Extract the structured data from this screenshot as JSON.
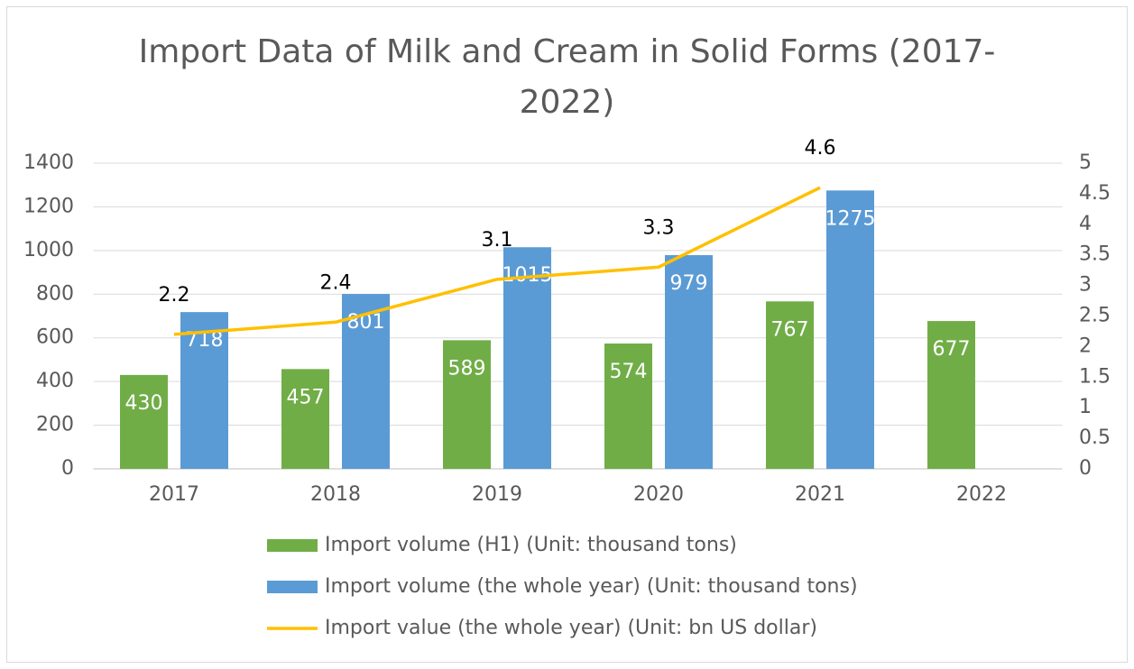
{
  "chart_data": {
    "type": "bar_line",
    "title": "Import Data of Milk and Cream in Solid Forms (2017-2022)",
    "categories": [
      "2017",
      "2018",
      "2019",
      "2020",
      "2021",
      "2022"
    ],
    "series": [
      {
        "name": "Import volume (H1) (Unit: thousand tons)",
        "type": "bar",
        "color": "#70ad47",
        "values": [
          430,
          457,
          589,
          574,
          767,
          677
        ]
      },
      {
        "name": "Import volume (the whole year) (Unit: thousand tons)",
        "type": "bar",
        "color": "#5b9bd5",
        "values": [
          718,
          801,
          1015,
          979,
          1275,
          null
        ]
      },
      {
        "name": "Import value (the whole year) (Unit: bn US dollar)",
        "type": "line",
        "axis": "y2",
        "color": "#ffc000",
        "values": [
          2.2,
          2.4,
          3.1,
          3.3,
          4.6,
          null
        ]
      }
    ],
    "ylim": [
      0,
      1400
    ],
    "yticks": [
      0,
      200,
      400,
      600,
      800,
      1000,
      1200,
      1400
    ],
    "y2lim": [
      0,
      5
    ],
    "y2ticks": [
      0,
      0.5,
      1,
      1.5,
      2,
      2.5,
      3,
      3.5,
      4,
      4.5,
      5
    ],
    "grid": true,
    "legend": "bottom"
  }
}
